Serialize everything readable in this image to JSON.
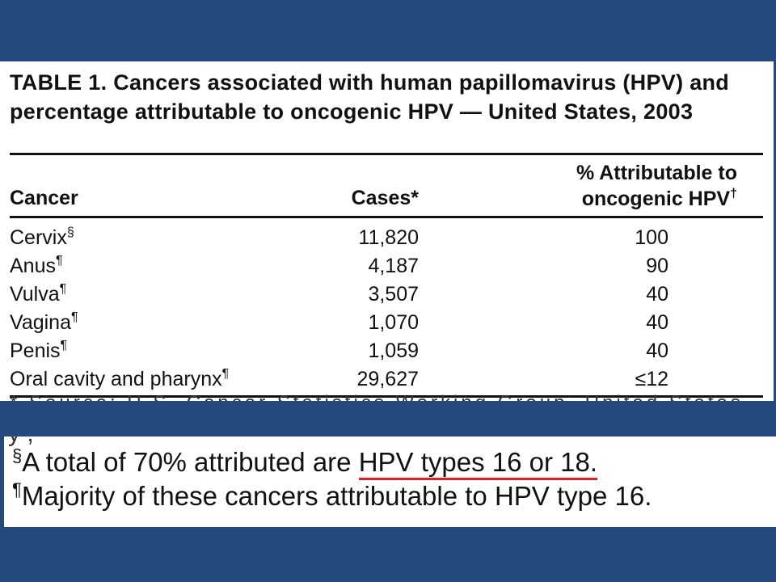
{
  "table": {
    "title": "TABLE 1. Cancers associated with human papillomavirus (HPV) and percentage attributable to oncogenic HPV — United States, 2003",
    "headers": {
      "cancer": "Cancer",
      "cases": "Cases*",
      "pct_line1": "% Attributable to",
      "pct_line2": "oncogenic HPV",
      "pct_mark": "†"
    },
    "rows": [
      {
        "cancer": "Cervix",
        "mark": "§",
        "cases": "11,820",
        "pct": "100"
      },
      {
        "cancer": "Anus",
        "mark": "¶",
        "cases": "4,187",
        "pct": "90"
      },
      {
        "cancer": "Vulva",
        "mark": "¶",
        "cases": "3,507",
        "pct": "40"
      },
      {
        "cancer": "Vagina",
        "mark": "¶",
        "cases": "1,070",
        "pct": "40"
      },
      {
        "cancer": "Penis",
        "mark": "¶",
        "cases": "1,059",
        "pct": "40"
      },
      {
        "cancer": "Oral cavity and pharynx",
        "mark": "¶",
        "cases": "29,627",
        "pct": "≤12"
      }
    ],
    "footnote_cut": "* Source: U.S. Cancer Statistics Working Group, United States"
  },
  "notes": {
    "cut_line": "y ,",
    "note1_mark": "§",
    "note1_text": "A total of 70% attributed are ",
    "note1_highlight": "HPV types 16 or 18.",
    "note2_mark": "¶",
    "note2_text": "Majority of these cancers attributable to HPV type 16."
  },
  "colors": {
    "background": "#254a7d",
    "panel": "#ffffff",
    "highlight_underline": "#e02020"
  }
}
